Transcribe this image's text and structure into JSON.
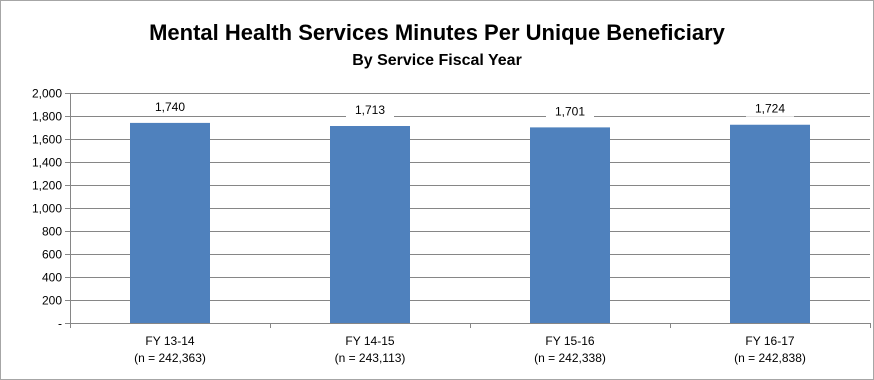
{
  "chart_data": {
    "type": "bar",
    "title": "Mental Health Services Minutes Per Unique Beneficiary",
    "subtitle": "By Service Fiscal Year",
    "categories": [
      [
        "FY 13-14",
        "(n = 242,363)"
      ],
      [
        "FY 14-15",
        "(n = 243,113)"
      ],
      [
        "FY 15-16",
        "(n = 242,338)"
      ],
      [
        "FY 16-17",
        "(n = 242,838)"
      ]
    ],
    "values": [
      1740,
      1713,
      1701,
      1724
    ],
    "data_labels": [
      "1,740",
      "1,713",
      "1,701",
      "1,724"
    ],
    "y_ticks": [
      "-",
      "200",
      "400",
      "600",
      "800",
      "1,000",
      "1,200",
      "1,400",
      "1,600",
      "1,800",
      "2,000"
    ],
    "ylim": [
      0,
      2000
    ],
    "grid": true,
    "legend": "none",
    "bar_color": "#4f81bd",
    "grid_color": "#868686"
  }
}
